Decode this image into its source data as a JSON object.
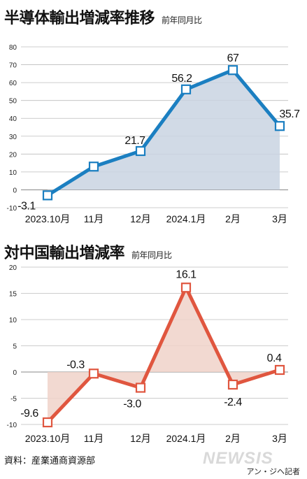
{
  "chart_data": [
    {
      "type": "line",
      "title": "半導体輸出増減率推移",
      "subtitle": "前年同月比",
      "categories": [
        "2023.10月",
        "11月",
        "12月",
        "2024.1月",
        "2月",
        "3月"
      ],
      "values": [
        -3.1,
        13,
        21.7,
        56.2,
        67,
        35.7
      ],
      "data_labels": [
        "-3.1",
        "",
        "21.7",
        "56.2",
        "67",
        "35.7"
      ],
      "ylim": [
        -10,
        80
      ],
      "yticks": [
        -10,
        0,
        10,
        20,
        30,
        40,
        50,
        60,
        70,
        80
      ],
      "grid": true,
      "colors": {
        "line": "#1b7fc1",
        "fill": "#c9d3e2",
        "marker_face": "#ffffff"
      }
    },
    {
      "type": "line",
      "title": "対中国輸出増減率",
      "subtitle": "前年同月比",
      "categories": [
        "2023.10月",
        "11月",
        "12月",
        "2024.1月",
        "2月",
        "3月"
      ],
      "values": [
        -9.6,
        -0.3,
        -3.0,
        16.1,
        -2.4,
        0.4
      ],
      "data_labels": [
        "-9.6",
        "-0.3",
        "-3.0",
        "16.1",
        "-2.4",
        "0.4"
      ],
      "ylim": [
        -10,
        20
      ],
      "yticks": [
        -10,
        -5,
        0,
        5,
        10,
        15,
        20
      ],
      "grid": true,
      "colors": {
        "line": "#e0563f",
        "fill": "#f0d2c9",
        "marker_face": "#ffffff"
      }
    }
  ],
  "source": "資料：産業通商資源部",
  "logo": "NEWSIS",
  "byline": "アン・ジヘ記者"
}
